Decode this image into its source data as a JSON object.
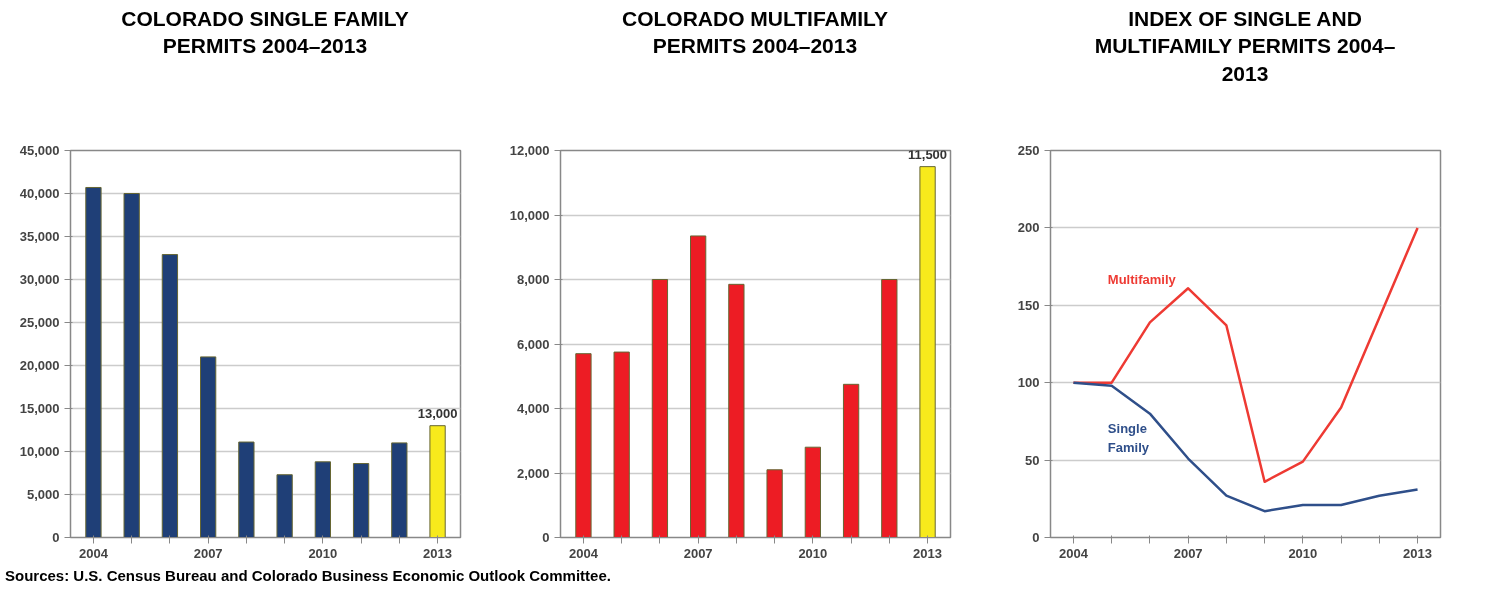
{
  "chart_data": [
    {
      "type": "bar",
      "title": "COLORADO SINGLE FAMILY PERMITS 2004–2013",
      "categories": [
        "2004",
        null,
        null,
        "2007",
        null,
        null,
        "2010",
        null,
        null,
        "2013"
      ],
      "values": [
        40700,
        40000,
        32900,
        21000,
        11100,
        7300,
        8800,
        8600,
        11000,
        13000
      ],
      "colors": [
        "#1f3f77",
        "#1f3f77",
        "#1f3f77",
        "#1f3f77",
        "#1f3f77",
        "#1f3f77",
        "#1f3f77",
        "#1f3f77",
        "#1f3f77",
        "#f7ea1c"
      ],
      "value_labels": [
        null,
        null,
        null,
        null,
        null,
        null,
        null,
        null,
        null,
        "13,000"
      ],
      "ylim": [
        0,
        45000
      ],
      "yticks": [
        {
          "value": 0,
          "label": "0"
        },
        {
          "value": 5000,
          "label": "5,000"
        },
        {
          "value": 10000,
          "label": "10,000"
        },
        {
          "value": 15000,
          "label": "15,000"
        },
        {
          "value": 20000,
          "label": "20,000"
        },
        {
          "value": 25000,
          "label": "25,000"
        },
        {
          "value": 30000,
          "label": "30,000"
        },
        {
          "value": 35000,
          "label": "35,000"
        },
        {
          "value": 40000,
          "label": "40,000"
        },
        {
          "value": 45000,
          "label": "45,000"
        }
      ],
      "grid": "y",
      "annotations": [
        "Sources: U.S. Census Bureau and Colorado Business Economic Outlook Committee."
      ]
    },
    {
      "type": "bar",
      "title": "COLORADO MULTIFAMILY PERMITS 2004–2013",
      "categories": [
        "2004",
        null,
        null,
        "2007",
        null,
        null,
        "2010",
        null,
        null,
        "2013"
      ],
      "values": [
        5700,
        5750,
        8000,
        9350,
        7850,
        2100,
        2800,
        4750,
        8000,
        11500
      ],
      "colors": [
        "#ed1c24",
        "#ed1c24",
        "#ed1c24",
        "#ed1c24",
        "#ed1c24",
        "#ed1c24",
        "#ed1c24",
        "#ed1c24",
        "#ed1c24",
        "#f7ea1c"
      ],
      "value_labels": [
        null,
        null,
        null,
        null,
        null,
        null,
        null,
        null,
        null,
        "11,500"
      ],
      "ylim": [
        0,
        12000
      ],
      "yticks": [
        {
          "value": 0,
          "label": "0"
        },
        {
          "value": 2000,
          "label": "2,000"
        },
        {
          "value": 4000,
          "label": "4,000"
        },
        {
          "value": 6000,
          "label": "6,000"
        },
        {
          "value": 8000,
          "label": "8,000"
        },
        {
          "value": 10000,
          "label": "10,000"
        },
        {
          "value": 12000,
          "label": "12,000"
        }
      ],
      "grid": "y"
    },
    {
      "type": "line",
      "title": "INDEX OF SINGLE AND MULTIFAMILY PERMITS 2004–2013",
      "categories": [
        "2004",
        null,
        null,
        "2007",
        null,
        null,
        "2010",
        null,
        null,
        "2013"
      ],
      "series": [
        {
          "name": "Multifamily",
          "color": "#ee3a33",
          "values": [
            100,
            100,
            139,
            161,
            137,
            36,
            49,
            84,
            142,
            200
          ]
        },
        {
          "name": "Single Family",
          "color": "#2f4f8a",
          "values": [
            100,
            98,
            80,
            51,
            27,
            17,
            21,
            21,
            27,
            31
          ]
        }
      ],
      "ylim": [
        0,
        250
      ],
      "yticks": [
        0,
        50,
        100,
        150,
        200,
        250
      ],
      "grid": "y",
      "marker": "none",
      "line_style": "solid"
    }
  ]
}
